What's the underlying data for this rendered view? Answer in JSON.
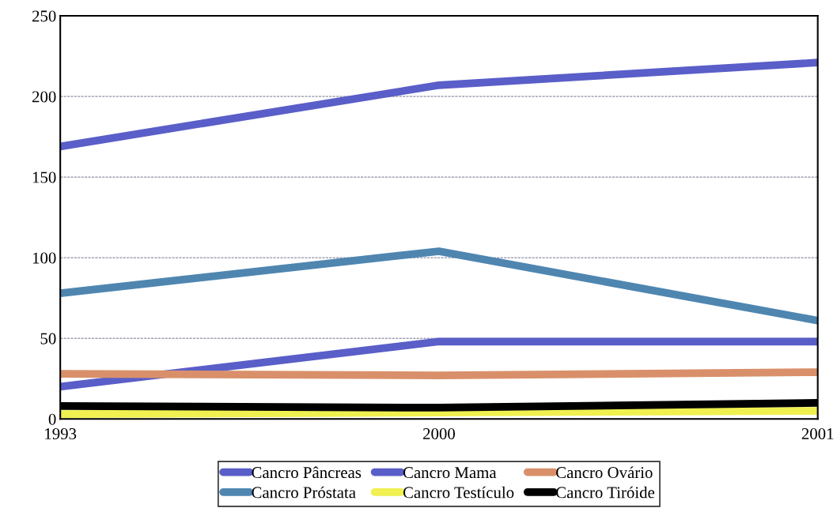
{
  "chart_data": {
    "type": "line",
    "categories": [
      "1993",
      "2000",
      "2001"
    ],
    "series": [
      {
        "name": "Cancro Pâncreas",
        "color": "#5a5ec8",
        "values": [
          169,
          207,
          221
        ]
      },
      {
        "name": "Cancro Próstata",
        "color": "#4f86b0",
        "values": [
          78,
          104,
          61
        ]
      },
      {
        "name": "Cancro Mama",
        "color": "#5a5ec8",
        "values": [
          20,
          48,
          48
        ]
      },
      {
        "name": "Cancro Testículo",
        "color": "#f0f050",
        "values": [
          3,
          4,
          5
        ]
      },
      {
        "name": "Cancro Ovário",
        "color": "#d9906a",
        "values": [
          28,
          27,
          29
        ]
      },
      {
        "name": "Cancro Tiróide",
        "color": "#000000",
        "values": [
          8,
          7,
          10
        ]
      }
    ],
    "ylim": [
      0,
      250
    ],
    "yticks": [
      0,
      50,
      100,
      150,
      200,
      250
    ],
    "grid": "y",
    "legend": "bottom",
    "marker": "none",
    "line_style": "solid"
  }
}
